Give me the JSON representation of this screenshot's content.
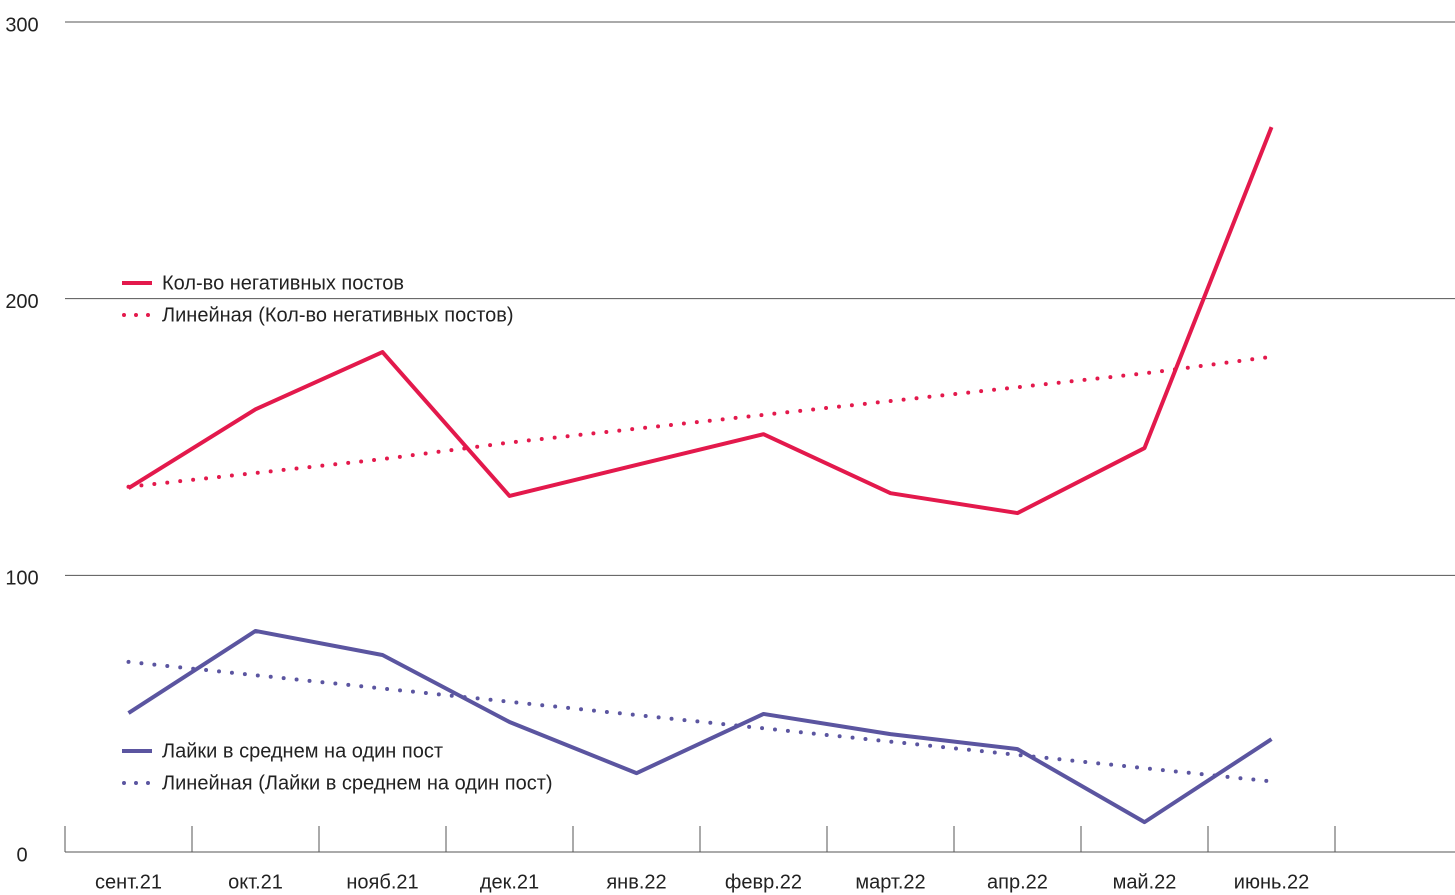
{
  "chart_data": {
    "type": "line",
    "categories": [
      "сент.21",
      "окт.21",
      "нояб.21",
      "дек.21",
      "янв.22",
      "февр.22",
      "март.22",
      "апр.22",
      "май.22",
      "июнь.22",
      null
    ],
    "series": [
      {
        "name": "Кол-во негативных постов",
        "color": "#e3194c",
        "dash": "solid",
        "values": [
          131.5,
          160,
          180.7,
          128.7,
          139.9,
          151,
          129.7,
          122.5,
          146,
          262,
          null
        ]
      },
      {
        "name": "Линейная (Кол-во негативных постов)",
        "color": "#e3194c",
        "dash": "dotted",
        "values": [
          132,
          137,
          142,
          148,
          153,
          158,
          163,
          168,
          173,
          179,
          null
        ]
      },
      {
        "name": "Лайки в среднем на один пост",
        "color": "#5b55a0",
        "dash": "solid",
        "values": [
          50.2,
          79.9,
          71.2,
          47,
          28.5,
          49.9,
          42.6,
          37.2,
          10.8,
          40.8,
          null
        ]
      },
      {
        "name": "Линейная (Лайки в среднем на один пост)",
        "color": "#5b55a0",
        "dash": "dotted",
        "values": [
          68.7,
          63.9,
          59.1,
          54.3,
          49.5,
          44.7,
          39.9,
          35.1,
          30.3,
          25.5,
          null
        ]
      }
    ],
    "ylim": [
      0,
      300
    ],
    "yticks": [
      0,
      100,
      200,
      300
    ],
    "grid": true
  }
}
